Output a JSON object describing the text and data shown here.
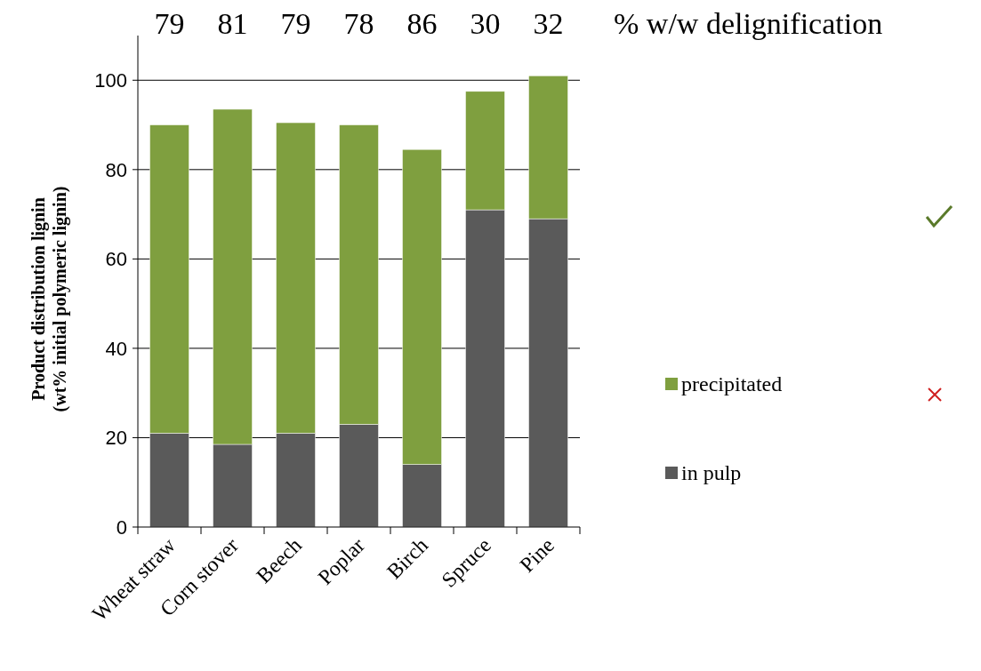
{
  "chart_data": {
    "type": "bar",
    "stacked": true,
    "ylabel": "Product distribution lignin\n(wt% initial polymeric lignin)",
    "categories": [
      "Wheat straw",
      "Corn stover",
      "Beech",
      "Poplar",
      "Birch",
      "Spruce",
      "Pine"
    ],
    "series": [
      {
        "name": "in pulp",
        "color": "#5a5a5a",
        "values": [
          21,
          18.5,
          21,
          23,
          14,
          71,
          69
        ]
      },
      {
        "name": "precipitated",
        "color": "#7f9f3f",
        "values": [
          69,
          75,
          69.5,
          67,
          70.5,
          26.5,
          32
        ]
      }
    ],
    "ylim": [
      0,
      110
    ],
    "yticks": [
      0,
      20,
      40,
      60,
      80,
      100
    ],
    "grid": "y",
    "legend": "right",
    "annotations": [
      "79",
      "81",
      "79",
      "78",
      "86",
      "30",
      "32",
      "% w/w delignification"
    ]
  }
}
